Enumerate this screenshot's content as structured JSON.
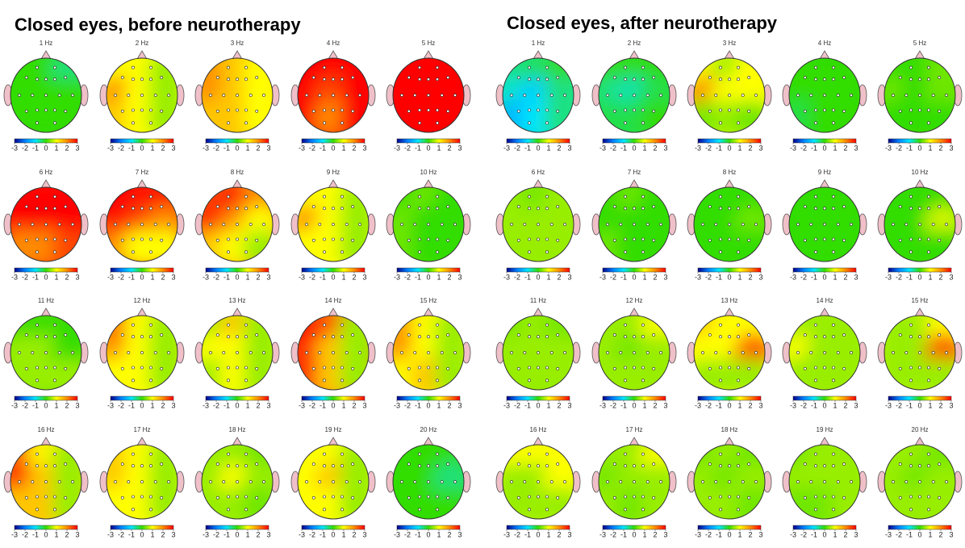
{
  "panels": [
    {
      "title": "Closed eyes, before neurotherapy",
      "maps": [
        {
          "label": "1 Hz",
          "z": [
            [
              0,
              0,
              -0.5
            ],
            [
              0,
              0,
              0
            ],
            [
              0,
              0,
              0
            ]
          ]
        },
        {
          "label": "2 Hz",
          "z": [
            [
              1,
              1,
              0.5
            ],
            [
              2,
              1,
              0.5
            ],
            [
              1.5,
              1,
              0.5
            ]
          ]
        },
        {
          "label": "3 Hz",
          "z": [
            [
              2,
              1.5,
              1
            ],
            [
              2,
              1.5,
              1
            ],
            [
              1.5,
              1.5,
              1
            ]
          ]
        },
        {
          "label": "4 Hz",
          "z": [
            [
              3,
              3,
              3
            ],
            [
              3,
              2.5,
              3
            ],
            [
              3,
              2,
              3
            ]
          ]
        },
        {
          "label": "5 Hz",
          "z": [
            [
              3,
              3,
              3
            ],
            [
              3,
              3,
              3
            ],
            [
              3,
              3,
              3
            ]
          ]
        },
        {
          "label": "6 Hz",
          "z": [
            [
              3,
              3,
              3
            ],
            [
              3,
              3,
              3
            ],
            [
              2,
              2,
              2.5
            ]
          ]
        },
        {
          "label": "7 Hz",
          "z": [
            [
              3,
              3,
              3
            ],
            [
              3,
              2.5,
              2
            ],
            [
              2,
              1,
              1
            ]
          ]
        },
        {
          "label": "8 Hz",
          "z": [
            [
              2.5,
              3,
              2
            ],
            [
              3,
              2,
              1
            ],
            [
              1.5,
              1,
              0.5
            ]
          ]
        },
        {
          "label": "9 Hz",
          "z": [
            [
              1,
              1,
              0.5
            ],
            [
              2,
              1,
              0.5
            ],
            [
              1,
              1,
              0.5
            ]
          ]
        },
        {
          "label": "10 Hz",
          "z": [
            [
              0,
              0.3,
              0
            ],
            [
              0.3,
              0,
              0
            ],
            [
              0.3,
              0,
              0
            ]
          ]
        },
        {
          "label": "11 Hz",
          "z": [
            [
              0,
              0,
              0
            ],
            [
              0.5,
              0.5,
              0
            ],
            [
              0.5,
              0.5,
              0.5
            ]
          ]
        },
        {
          "label": "12 Hz",
          "z": [
            [
              2.5,
              1,
              0.5
            ],
            [
              2,
              1,
              0.5
            ],
            [
              1,
              1,
              0.5
            ]
          ]
        },
        {
          "label": "13 Hz",
          "z": [
            [
              0.5,
              1.5,
              0.5
            ],
            [
              1,
              1,
              0.5
            ],
            [
              0.5,
              1,
              0.5
            ]
          ]
        },
        {
          "label": "14 Hz",
          "z": [
            [
              3,
              2.5,
              0.5
            ],
            [
              3,
              1.5,
              0.5
            ],
            [
              3,
              1.5,
              0.5
            ]
          ]
        },
        {
          "label": "15 Hz",
          "z": [
            [
              2,
              1,
              0.5
            ],
            [
              2,
              1,
              0.5
            ],
            [
              1,
              1.5,
              0.5
            ]
          ]
        },
        {
          "label": "16 Hz",
          "z": [
            [
              2.5,
              1,
              0.5
            ],
            [
              3,
              1.5,
              0.5
            ],
            [
              1.5,
              1.5,
              0.5
            ]
          ]
        },
        {
          "label": "17 Hz",
          "z": [
            [
              1.5,
              1,
              0.5
            ],
            [
              1.5,
              1,
              0.5
            ],
            [
              1,
              1,
              0.5
            ]
          ]
        },
        {
          "label": "18 Hz",
          "z": [
            [
              0.5,
              0.5,
              0.3
            ],
            [
              0.5,
              1,
              0.5
            ],
            [
              0.5,
              0.5,
              0.3
            ]
          ]
        },
        {
          "label": "19 Hz",
          "z": [
            [
              1,
              1,
              0.5
            ],
            [
              1,
              1.5,
              0.5
            ],
            [
              1,
              1,
              0.5
            ]
          ]
        },
        {
          "label": "20 Hz",
          "z": [
            [
              0,
              0,
              0
            ],
            [
              0,
              0,
              -0.5
            ],
            [
              0,
              0,
              0
            ]
          ]
        }
      ]
    },
    {
      "title": "Closed eyes, after neurotherapy",
      "maps": [
        {
          "label": "1 Hz",
          "z": [
            [
              -0.5,
              -0.3,
              0
            ],
            [
              -0.8,
              -1.2,
              -0.5
            ],
            [
              -1.5,
              -1,
              -0.5
            ]
          ]
        },
        {
          "label": "2 Hz",
          "z": [
            [
              0,
              0,
              0
            ],
            [
              -0.5,
              -0.7,
              -0.3
            ],
            [
              -0.3,
              -0.3,
              0
            ]
          ]
        },
        {
          "label": "3 Hz",
          "z": [
            [
              1,
              0.5,
              1
            ],
            [
              2,
              1,
              1
            ],
            [
              0.3,
              0.5,
              0.3
            ]
          ]
        },
        {
          "label": "4 Hz",
          "z": [
            [
              0,
              0,
              0
            ],
            [
              0,
              0,
              0
            ],
            [
              -0.3,
              0,
              0
            ]
          ]
        },
        {
          "label": "5 Hz",
          "z": [
            [
              0,
              0,
              0.3
            ],
            [
              0.3,
              0,
              0.3
            ],
            [
              0,
              0,
              0
            ]
          ]
        },
        {
          "label": "6 Hz",
          "z": [
            [
              0.5,
              0.3,
              0.5
            ],
            [
              0.5,
              0.5,
              0.5
            ],
            [
              0.5,
              0.5,
              0.5
            ]
          ]
        },
        {
          "label": "7 Hz",
          "z": [
            [
              0,
              0.3,
              0
            ],
            [
              0,
              0,
              0
            ],
            [
              0.3,
              0,
              0
            ]
          ]
        },
        {
          "label": "8 Hz",
          "z": [
            [
              0,
              0,
              0
            ],
            [
              0,
              0,
              0.3
            ],
            [
              0,
              0,
              0
            ]
          ]
        },
        {
          "label": "9 Hz",
          "z": [
            [
              0,
              0,
              0
            ],
            [
              0,
              0,
              0
            ],
            [
              0,
              0,
              0
            ]
          ]
        },
        {
          "label": "10 Hz",
          "z": [
            [
              0,
              0,
              0
            ],
            [
              0,
              0,
              0.8
            ],
            [
              0,
              0,
              0
            ]
          ]
        },
        {
          "label": "11 Hz",
          "z": [
            [
              0.3,
              0.5,
              0.3
            ],
            [
              0.5,
              0.5,
              0.5
            ],
            [
              0.5,
              0.5,
              0.5
            ]
          ]
        },
        {
          "label": "12 Hz",
          "z": [
            [
              0.5,
              0.5,
              1
            ],
            [
              0.5,
              0.3,
              0.5
            ],
            [
              0.5,
              0.5,
              0.5
            ]
          ]
        },
        {
          "label": "13 Hz",
          "z": [
            [
              1.5,
              1,
              1
            ],
            [
              1,
              1,
              2.5
            ],
            [
              0.5,
              0.5,
              0.5
            ]
          ]
        },
        {
          "label": "14 Hz",
          "z": [
            [
              0.5,
              0.5,
              0.5
            ],
            [
              1,
              0.5,
              0.5
            ],
            [
              0.5,
              0.5,
              0.5
            ]
          ]
        },
        {
          "label": "15 Hz",
          "z": [
            [
              0.5,
              0.5,
              1
            ],
            [
              0.5,
              0.5,
              2.5
            ],
            [
              0.5,
              0.5,
              0.5
            ]
          ]
        },
        {
          "label": "16 Hz",
          "z": [
            [
              1,
              1,
              1
            ],
            [
              0.5,
              0.5,
              1
            ],
            [
              0.5,
              0.5,
              0.5
            ]
          ]
        },
        {
          "label": "17 Hz",
          "z": [
            [
              0.5,
              0.5,
              1
            ],
            [
              0.3,
              0.5,
              0.5
            ],
            [
              0.5,
              0.3,
              0.5
            ]
          ]
        },
        {
          "label": "18 Hz",
          "z": [
            [
              0.3,
              0.5,
              0.3
            ],
            [
              0.5,
              0.3,
              0.5
            ],
            [
              0.5,
              0.5,
              0.3
            ]
          ]
        },
        {
          "label": "19 Hz",
          "z": [
            [
              0.3,
              0.5,
              0.5
            ],
            [
              0.5,
              0.5,
              0.5
            ],
            [
              0.3,
              0.3,
              0.5
            ]
          ]
        },
        {
          "label": "20 Hz",
          "z": [
            [
              0.5,
              0.5,
              0.3
            ],
            [
              0.5,
              0.3,
              0.5
            ],
            [
              0.5,
              0.5,
              0.5
            ]
          ]
        }
      ]
    }
  ],
  "colorbar_ticks": [
    -3,
    -2,
    -1,
    0,
    1,
    2,
    3
  ],
  "colormap": [
    "#00008b",
    "#0080ff",
    "#00e5ff",
    "#33dd00",
    "#ffff00",
    "#ff8c00",
    "#ff0000"
  ]
}
